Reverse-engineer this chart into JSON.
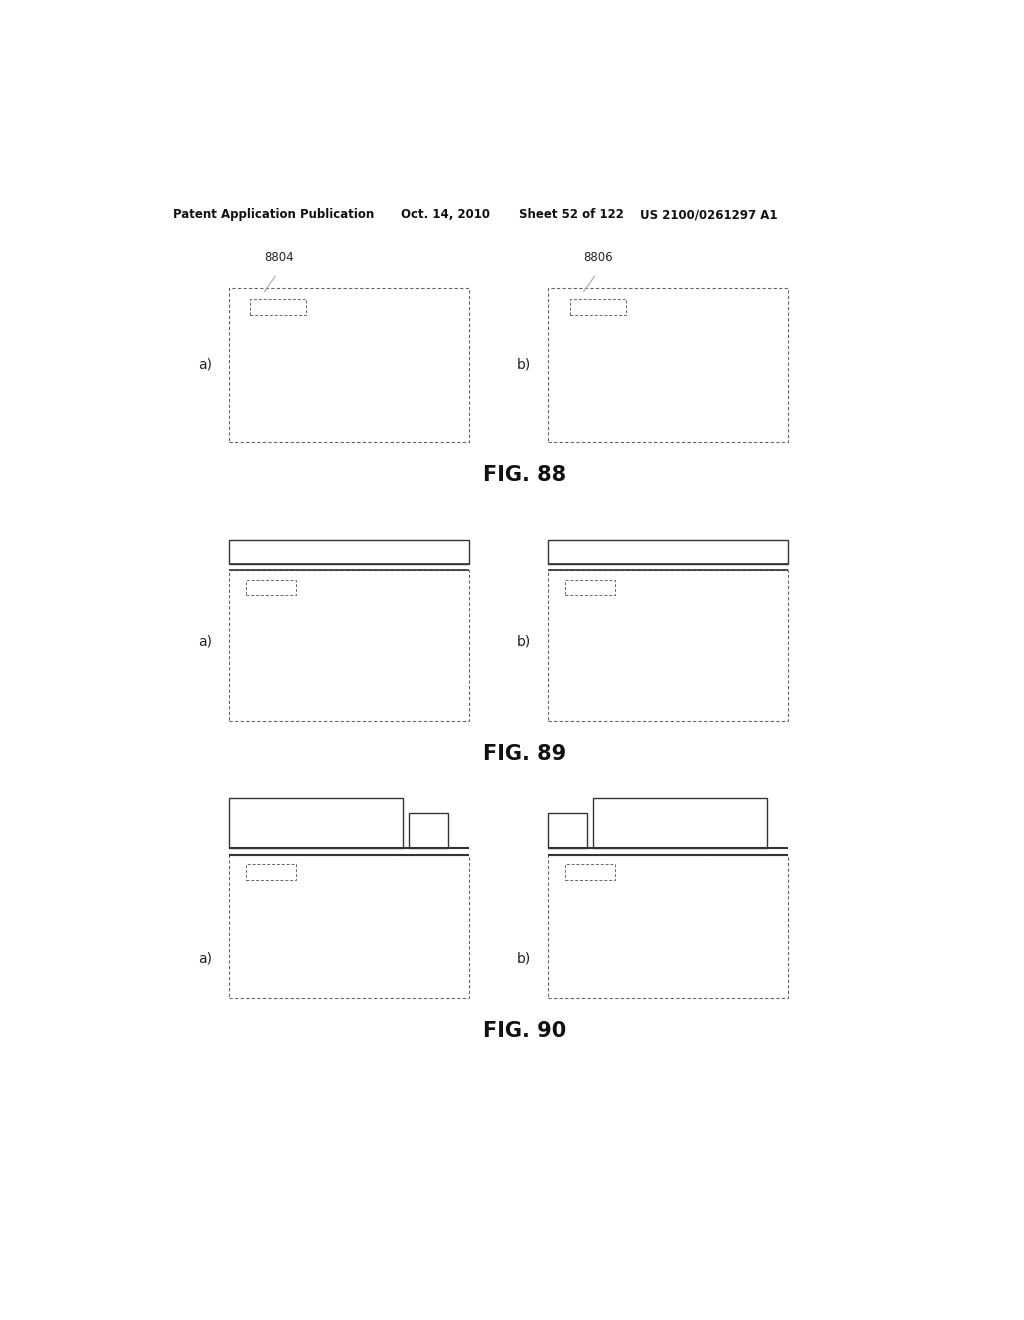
{
  "bg_color": "#ffffff",
  "header_text": "Patent Application Publication",
  "header_date": "Oct. 14, 2010",
  "header_sheet": "Sheet 52 of 122",
  "header_patent": "US 2100/0261297 A1",
  "fig88_title": "FIG. 88",
  "fig89_title": "FIG. 89",
  "fig90_title": "FIG. 90",
  "label_a": "a)",
  "label_b": "b)",
  "label_8804": "8804",
  "label_8806": "8806"
}
